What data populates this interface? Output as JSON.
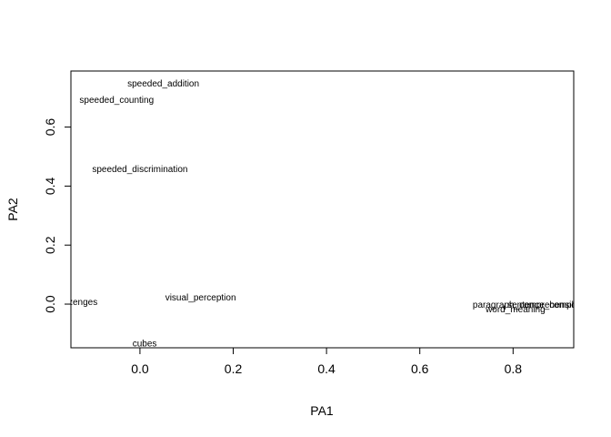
{
  "chart_data": {
    "type": "scatter",
    "title": "",
    "xlabel": "PA1",
    "ylabel": "PA2",
    "xlim": [
      -0.148,
      0.93
    ],
    "ylim": [
      -0.148,
      0.79
    ],
    "xticks": [
      0.0,
      0.2,
      0.4,
      0.6,
      0.8
    ],
    "xtick_labels": [
      "0.0",
      "0.2",
      "0.4",
      "0.6",
      "0.8"
    ],
    "yticks": [
      0.0,
      0.2,
      0.4,
      0.6
    ],
    "ytick_labels": [
      "0.0",
      "0.2",
      "0.4",
      "0.6"
    ],
    "grid": false,
    "points": [
      {
        "label": "speeded_addition",
        "x": 0.05,
        "y": 0.745
      },
      {
        "label": "speeded_counting",
        "x": -0.05,
        "y": 0.69
      },
      {
        "label": "speeded_discrimination",
        "x": 0.0,
        "y": 0.455
      },
      {
        "label": "visual_perception",
        "x": 0.13,
        "y": 0.02
      },
      {
        "label": "lozenges",
        "x": -0.13,
        "y": 0.005
      },
      {
        "label": "cubes",
        "x": 0.01,
        "y": -0.135
      },
      {
        "label": "paragraph_comprehension",
        "x": 0.83,
        "y": -0.005
      },
      {
        "label": "sentence_completion",
        "x": 0.88,
        "y": -0.005
      },
      {
        "label": "word_meaning",
        "x": 0.805,
        "y": -0.02
      }
    ]
  }
}
